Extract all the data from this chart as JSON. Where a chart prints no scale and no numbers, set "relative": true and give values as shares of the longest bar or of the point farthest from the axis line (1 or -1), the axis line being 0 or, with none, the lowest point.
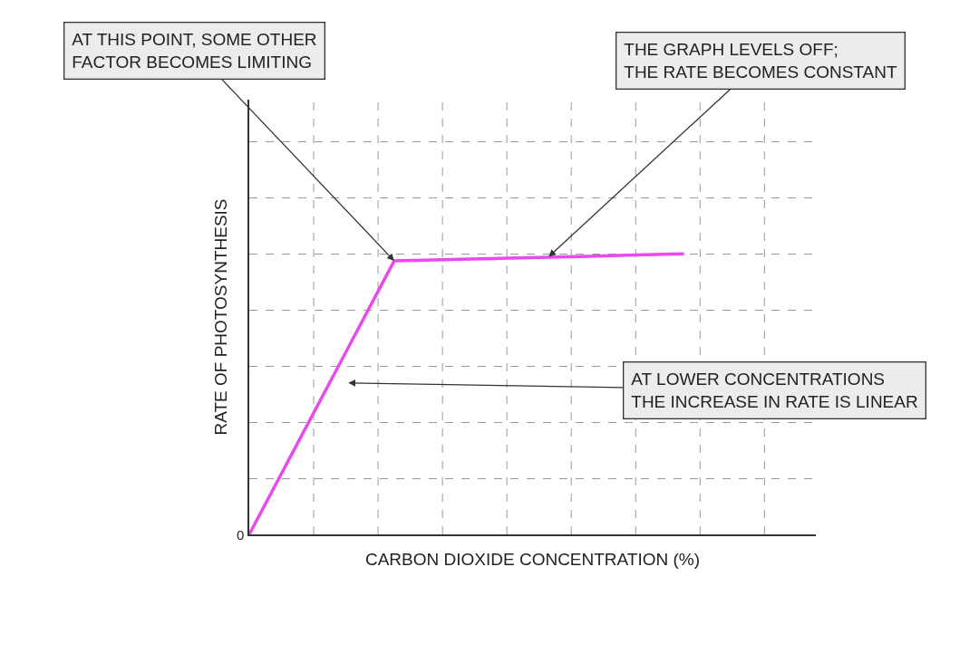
{
  "chart_data": {
    "type": "line",
    "relative": true,
    "xlabel": "CARBON DIOXIDE CONCENTRATION (%)",
    "ylabel": "RATE OF PHOTOSYNTHESIS",
    "categories": [
      null,
      null,
      null,
      null,
      null,
      null,
      null,
      null,
      null,
      null
    ],
    "series": [
      {
        "color": "#e84af0",
        "values": [
          0,
          0.325,
          0.65,
          0.975,
          0.979,
          0.983,
          0.987,
          0.991,
          0.996,
          1
        ]
      }
    ],
    "grid": true,
    "marker": "none",
    "line_style": "solid",
    "annotations": [
      "AT THIS POINT, SOME OTHER\nFACTOR BECOMES LIMITING",
      "THE GRAPH LEVELS OFF;\nTHE RATE BECOMES CONSTANT",
      "AT LOWER CONCENTRATIONS\nTHE INCREASE IN RATE IS LINEAR",
      "0"
    ]
  }
}
